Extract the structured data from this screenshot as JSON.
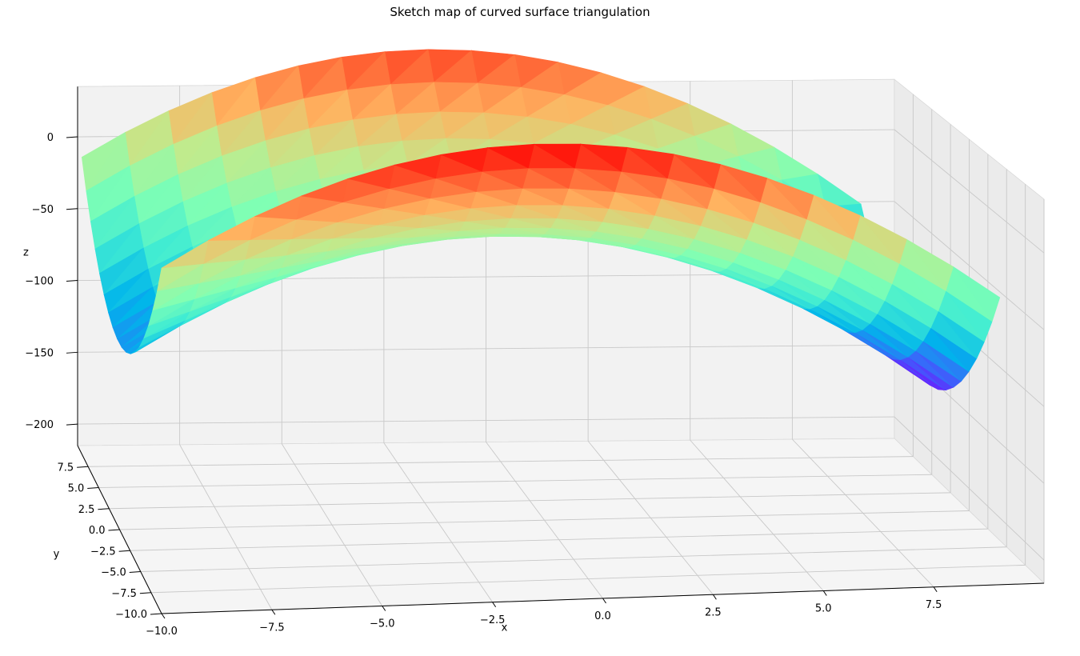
{
  "chart_data": {
    "type": "surface3d",
    "title": "Sketch map of curved surface triangulation",
    "xlabel": "x",
    "ylabel": "y",
    "zlabel": "z",
    "x_ticks": [
      "−10.0",
      "−7.5",
      "−5.0",
      "−2.5",
      "0.0",
      "2.5",
      "5.0",
      "7.5"
    ],
    "y_ticks": [
      "−10.0",
      "−7.5",
      "−5.0",
      "−2.5",
      "0.0",
      "2.5",
      "5.0",
      "7.5"
    ],
    "z_ticks": [
      "−200",
      "−150",
      "−100",
      "−50",
      "0"
    ],
    "xlim": [
      -10,
      10
    ],
    "ylim": [
      -10,
      10
    ],
    "zlim": [
      -215,
      35
    ],
    "x_range": [
      -10,
      9
    ],
    "y_range": [
      -10,
      9
    ],
    "grid": true,
    "colormap": "rainbow",
    "colormap_stops": [
      "#7f00ff",
      "#3f5efb",
      "#00b5eb",
      "#40ecd3",
      "#80ffb4",
      "#c0eb8d",
      "#ffb360",
      "#ff5a2f",
      "#ff0000"
    ],
    "surface_formula": "z = -x^2 + y^2 - 3x - 20",
    "triangulation": "uniform grid, 19 x 19 vertices, each cell split into 2 triangles",
    "view": {
      "elevation_deg": 18,
      "azimuth_deg": -88
    }
  }
}
